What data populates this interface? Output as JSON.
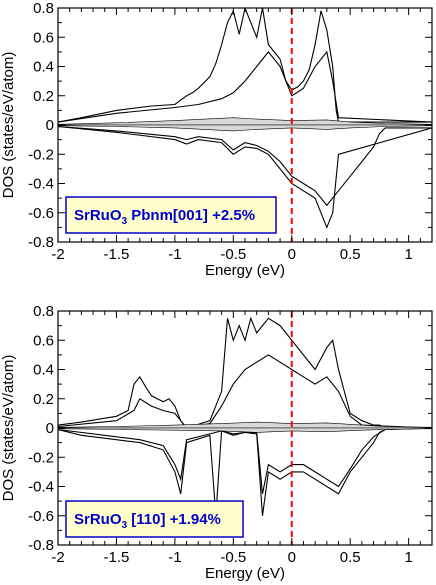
{
  "chart_data": [
    {
      "type": "line",
      "xlabel": "Energy (eV)",
      "ylabel": "DOS (states/eV/atom)",
      "xlim": [
        -2,
        1.2
      ],
      "ylim": [
        -0.8,
        0.8
      ],
      "xticks": [
        -2,
        -1.5,
        -1,
        -0.5,
        0,
        0.5,
        1
      ],
      "xtick_labels": [
        "-2",
        "-1.5",
        "-1",
        "-0.5",
        "0",
        "0.5",
        "1"
      ],
      "yticks": [
        -0.8,
        -0.6,
        -0.4,
        -0.2,
        0,
        0.2,
        0.4,
        0.6,
        0.8
      ],
      "ytick_labels": [
        "-0.8",
        "-0.6",
        "-0.4",
        "-0.2",
        "0",
        "0.2",
        "0.4",
        "0.6",
        "0.8"
      ],
      "fermi_level": 0,
      "fermi_color": "#ff0000",
      "legend": {
        "formula": "SrRuO",
        "subscript": "3",
        "suffix": " Pbnm[001] +2.5%"
      },
      "legend_border_color": "#0000cc",
      "legend_fill_color": "#ffffcc",
      "series": [
        {
          "style": "line",
          "x": [
            -2,
            -1.8,
            -1.5,
            -1.2,
            -1.0,
            -0.95,
            -0.9,
            -0.85,
            -0.8,
            -0.7,
            -0.65,
            -0.6,
            -0.55,
            -0.5,
            -0.45,
            -0.4,
            -0.35,
            -0.3,
            -0.25,
            -0.2,
            -0.15,
            -0.1,
            -0.05,
            0,
            0.05,
            0.1,
            0.15,
            0.2,
            0.25,
            0.3,
            0.35,
            0.38,
            0.4,
            1.2
          ],
          "y": [
            0.02,
            0.05,
            0.1,
            0.13,
            0.14,
            0.17,
            0.2,
            0.22,
            0.25,
            0.33,
            0.42,
            0.55,
            0.7,
            0.78,
            0.62,
            0.8,
            0.7,
            0.6,
            0.8,
            0.55,
            0.5,
            0.45,
            0.3,
            0.24,
            0.26,
            0.3,
            0.38,
            0.55,
            0.78,
            0.65,
            0.4,
            0.1,
            0.02,
            0.02
          ]
        },
        {
          "style": "line",
          "x": [
            -2,
            -1.5,
            -1.0,
            -0.8,
            -0.6,
            -0.5,
            -0.4,
            -0.3,
            -0.2,
            -0.1,
            0,
            0.1,
            0.2,
            0.3,
            0.35,
            0.4,
            1.2
          ],
          "y": [
            0.02,
            0.08,
            0.12,
            0.14,
            0.18,
            0.22,
            0.3,
            0.4,
            0.5,
            0.4,
            0.2,
            0.25,
            0.4,
            0.5,
            0.3,
            0.05,
            0.02
          ]
        },
        {
          "style": "line",
          "x": [
            -2,
            -1.5,
            -1.0,
            -0.9,
            -0.8,
            -0.6,
            -0.5,
            -0.4,
            -0.3,
            -0.2,
            -0.1,
            0,
            0.1,
            0.2,
            0.3,
            0.35,
            0.4,
            1.2
          ],
          "y": [
            -0.01,
            -0.05,
            -0.1,
            -0.13,
            -0.1,
            -0.12,
            -0.2,
            -0.15,
            -0.16,
            -0.2,
            -0.3,
            -0.4,
            -0.45,
            -0.5,
            -0.7,
            -0.6,
            -0.2,
            -0.02
          ]
        },
        {
          "style": "line",
          "x": [
            -2,
            -1.5,
            -1.0,
            -0.9,
            -0.8,
            -0.6,
            -0.5,
            -0.4,
            -0.3,
            -0.2,
            -0.1,
            0,
            0.1,
            0.2,
            0.3,
            0.4,
            0.5,
            0.6,
            0.7,
            0.75,
            0.8,
            1.2
          ],
          "y": [
            -0.01,
            -0.04,
            -0.08,
            -0.1,
            -0.08,
            -0.1,
            -0.17,
            -0.12,
            -0.14,
            -0.18,
            -0.25,
            -0.35,
            -0.4,
            -0.45,
            -0.55,
            -0.45,
            -0.35,
            -0.25,
            -0.15,
            -0.06,
            -0.02,
            -0.02
          ]
        },
        {
          "style": "fill",
          "x": [
            -2,
            -1.5,
            -1.0,
            -0.5,
            -0.3,
            0,
            0.3,
            0.5,
            0.8,
            1.2
          ],
          "y": [
            0.005,
            0.015,
            0.03,
            0.05,
            0.04,
            0.03,
            0.035,
            0.02,
            0.01,
            0.005
          ]
        },
        {
          "style": "fill",
          "x": [
            -2,
            -1.5,
            -1.0,
            -0.5,
            -0.3,
            0,
            0.3,
            0.5,
            0.8,
            1.2
          ],
          "y": [
            -0.005,
            -0.01,
            -0.02,
            -0.04,
            -0.03,
            -0.02,
            -0.03,
            -0.02,
            -0.01,
            -0.005
          ]
        }
      ]
    },
    {
      "type": "line",
      "xlabel": "Energy (eV)",
      "ylabel": "DOS (states/eV/atom)",
      "xlim": [
        -2,
        1.2
      ],
      "ylim": [
        -0.8,
        0.8
      ],
      "xticks": [
        -2,
        -1.5,
        -1,
        -0.5,
        0,
        0.5,
        1
      ],
      "xtick_labels": [
        "-2",
        "-1.5",
        "-1",
        "-0.5",
        "0",
        "0.5",
        "1"
      ],
      "yticks": [
        -0.8,
        -0.6,
        -0.4,
        -0.2,
        0,
        0.2,
        0.4,
        0.6,
        0.8
      ],
      "ytick_labels": [
        "-0.8",
        "-0.6",
        "-0.4",
        "-0.2",
        "0",
        "0.2",
        "0.4",
        "0.6",
        "0.8"
      ],
      "fermi_level": 0,
      "fermi_color": "#ff0000",
      "legend": {
        "formula": "SrRuO",
        "subscript": "3",
        "suffix": " [110] +1.94%"
      },
      "legend_border_color": "#0000cc",
      "legend_fill_color": "#ffffcc",
      "series": [
        {
          "style": "line",
          "x": [
            -2,
            -1.8,
            -1.5,
            -1.4,
            -1.35,
            -1.3,
            -1.25,
            -1.2,
            -1.15,
            -1.1,
            -1.05,
            -1.0,
            -0.95,
            -0.9,
            -0.7,
            -0.6,
            -0.55,
            -0.5,
            -0.45,
            -0.4,
            -0.35,
            -0.3,
            -0.25,
            -0.2,
            -0.1,
            0,
            0.1,
            0.2,
            0.3,
            0.35,
            0.4,
            0.5,
            0.6,
            0.7,
            0.75,
            0.8,
            1.2
          ],
          "y": [
            0.02,
            0.04,
            0.08,
            0.12,
            0.3,
            0.35,
            0.28,
            0.22,
            0.2,
            0.18,
            0.2,
            0.15,
            0.05,
            0.0,
            0.05,
            0.25,
            0.75,
            0.6,
            0.7,
            0.6,
            0.75,
            0.65,
            0.7,
            0.75,
            0.7,
            0.6,
            0.5,
            0.4,
            0.55,
            0.6,
            0.4,
            0.1,
            0.05,
            0.02,
            0.02,
            0.0,
            0.0
          ]
        },
        {
          "style": "line",
          "x": [
            -2,
            -1.5,
            -1.35,
            -1.3,
            -1.2,
            -1.1,
            -1.0,
            -0.95,
            -0.9,
            -0.7,
            -0.6,
            -0.5,
            -0.4,
            -0.3,
            -0.2,
            -0.1,
            0,
            0.1,
            0.2,
            0.3,
            0.4,
            0.5,
            0.6,
            1.2
          ],
          "y": [
            0.01,
            0.05,
            0.12,
            0.2,
            0.15,
            0.12,
            0.1,
            0.05,
            0.0,
            0.03,
            0.15,
            0.3,
            0.4,
            0.45,
            0.5,
            0.45,
            0.4,
            0.35,
            0.3,
            0.35,
            0.25,
            0.08,
            0.02,
            0.0
          ]
        },
        {
          "style": "line",
          "x": [
            -2,
            -1.8,
            -1.5,
            -1.3,
            -1.1,
            -1.0,
            -0.95,
            -0.9,
            -0.7,
            -0.65,
            -0.6,
            -0.5,
            -0.4,
            -0.3,
            -0.25,
            -0.2,
            -0.1,
            0,
            0.1,
            0.2,
            0.3,
            0.4,
            0.5,
            0.6,
            0.7,
            0.75,
            0.8,
            1.2
          ],
          "y": [
            -0.01,
            -0.05,
            -0.08,
            -0.1,
            -0.15,
            -0.3,
            -0.45,
            -0.1,
            -0.05,
            -0.6,
            -0.02,
            -0.05,
            -0.03,
            -0.04,
            -0.6,
            -0.3,
            -0.35,
            -0.3,
            -0.3,
            -0.35,
            -0.4,
            -0.45,
            -0.3,
            -0.2,
            -0.1,
            -0.03,
            -0.01,
            0.0
          ]
        },
        {
          "style": "line",
          "x": [
            -2,
            -1.5,
            -1.3,
            -1.1,
            -1.0,
            -0.95,
            -0.9,
            -0.7,
            -0.6,
            -0.5,
            -0.4,
            -0.3,
            -0.25,
            -0.2,
            -0.1,
            0,
            0.1,
            0.2,
            0.3,
            0.4,
            0.5,
            0.6,
            0.7,
            0.8,
            1.2
          ],
          "y": [
            -0.01,
            -0.06,
            -0.08,
            -0.12,
            -0.25,
            -0.35,
            -0.08,
            -0.04,
            -0.02,
            -0.04,
            -0.03,
            -0.03,
            -0.45,
            -0.25,
            -0.3,
            -0.25,
            -0.25,
            -0.3,
            -0.35,
            -0.4,
            -0.28,
            -0.15,
            -0.06,
            -0.01,
            0.0
          ]
        },
        {
          "style": "fill",
          "x": [
            -2,
            -1.5,
            -1.0,
            -0.6,
            -0.3,
            0,
            0.3,
            0.6,
            0.8,
            1.2
          ],
          "y": [
            0.005,
            0.01,
            0.02,
            0.03,
            0.04,
            0.03,
            0.035,
            0.02,
            0.01,
            0.005
          ]
        },
        {
          "style": "fill",
          "x": [
            -2,
            -1.5,
            -1.0,
            -0.6,
            -0.3,
            0,
            0.3,
            0.6,
            0.8,
            1.2
          ],
          "y": [
            -0.005,
            -0.01,
            -0.015,
            -0.02,
            -0.03,
            -0.02,
            -0.025,
            -0.015,
            -0.01,
            -0.005
          ]
        }
      ]
    }
  ]
}
